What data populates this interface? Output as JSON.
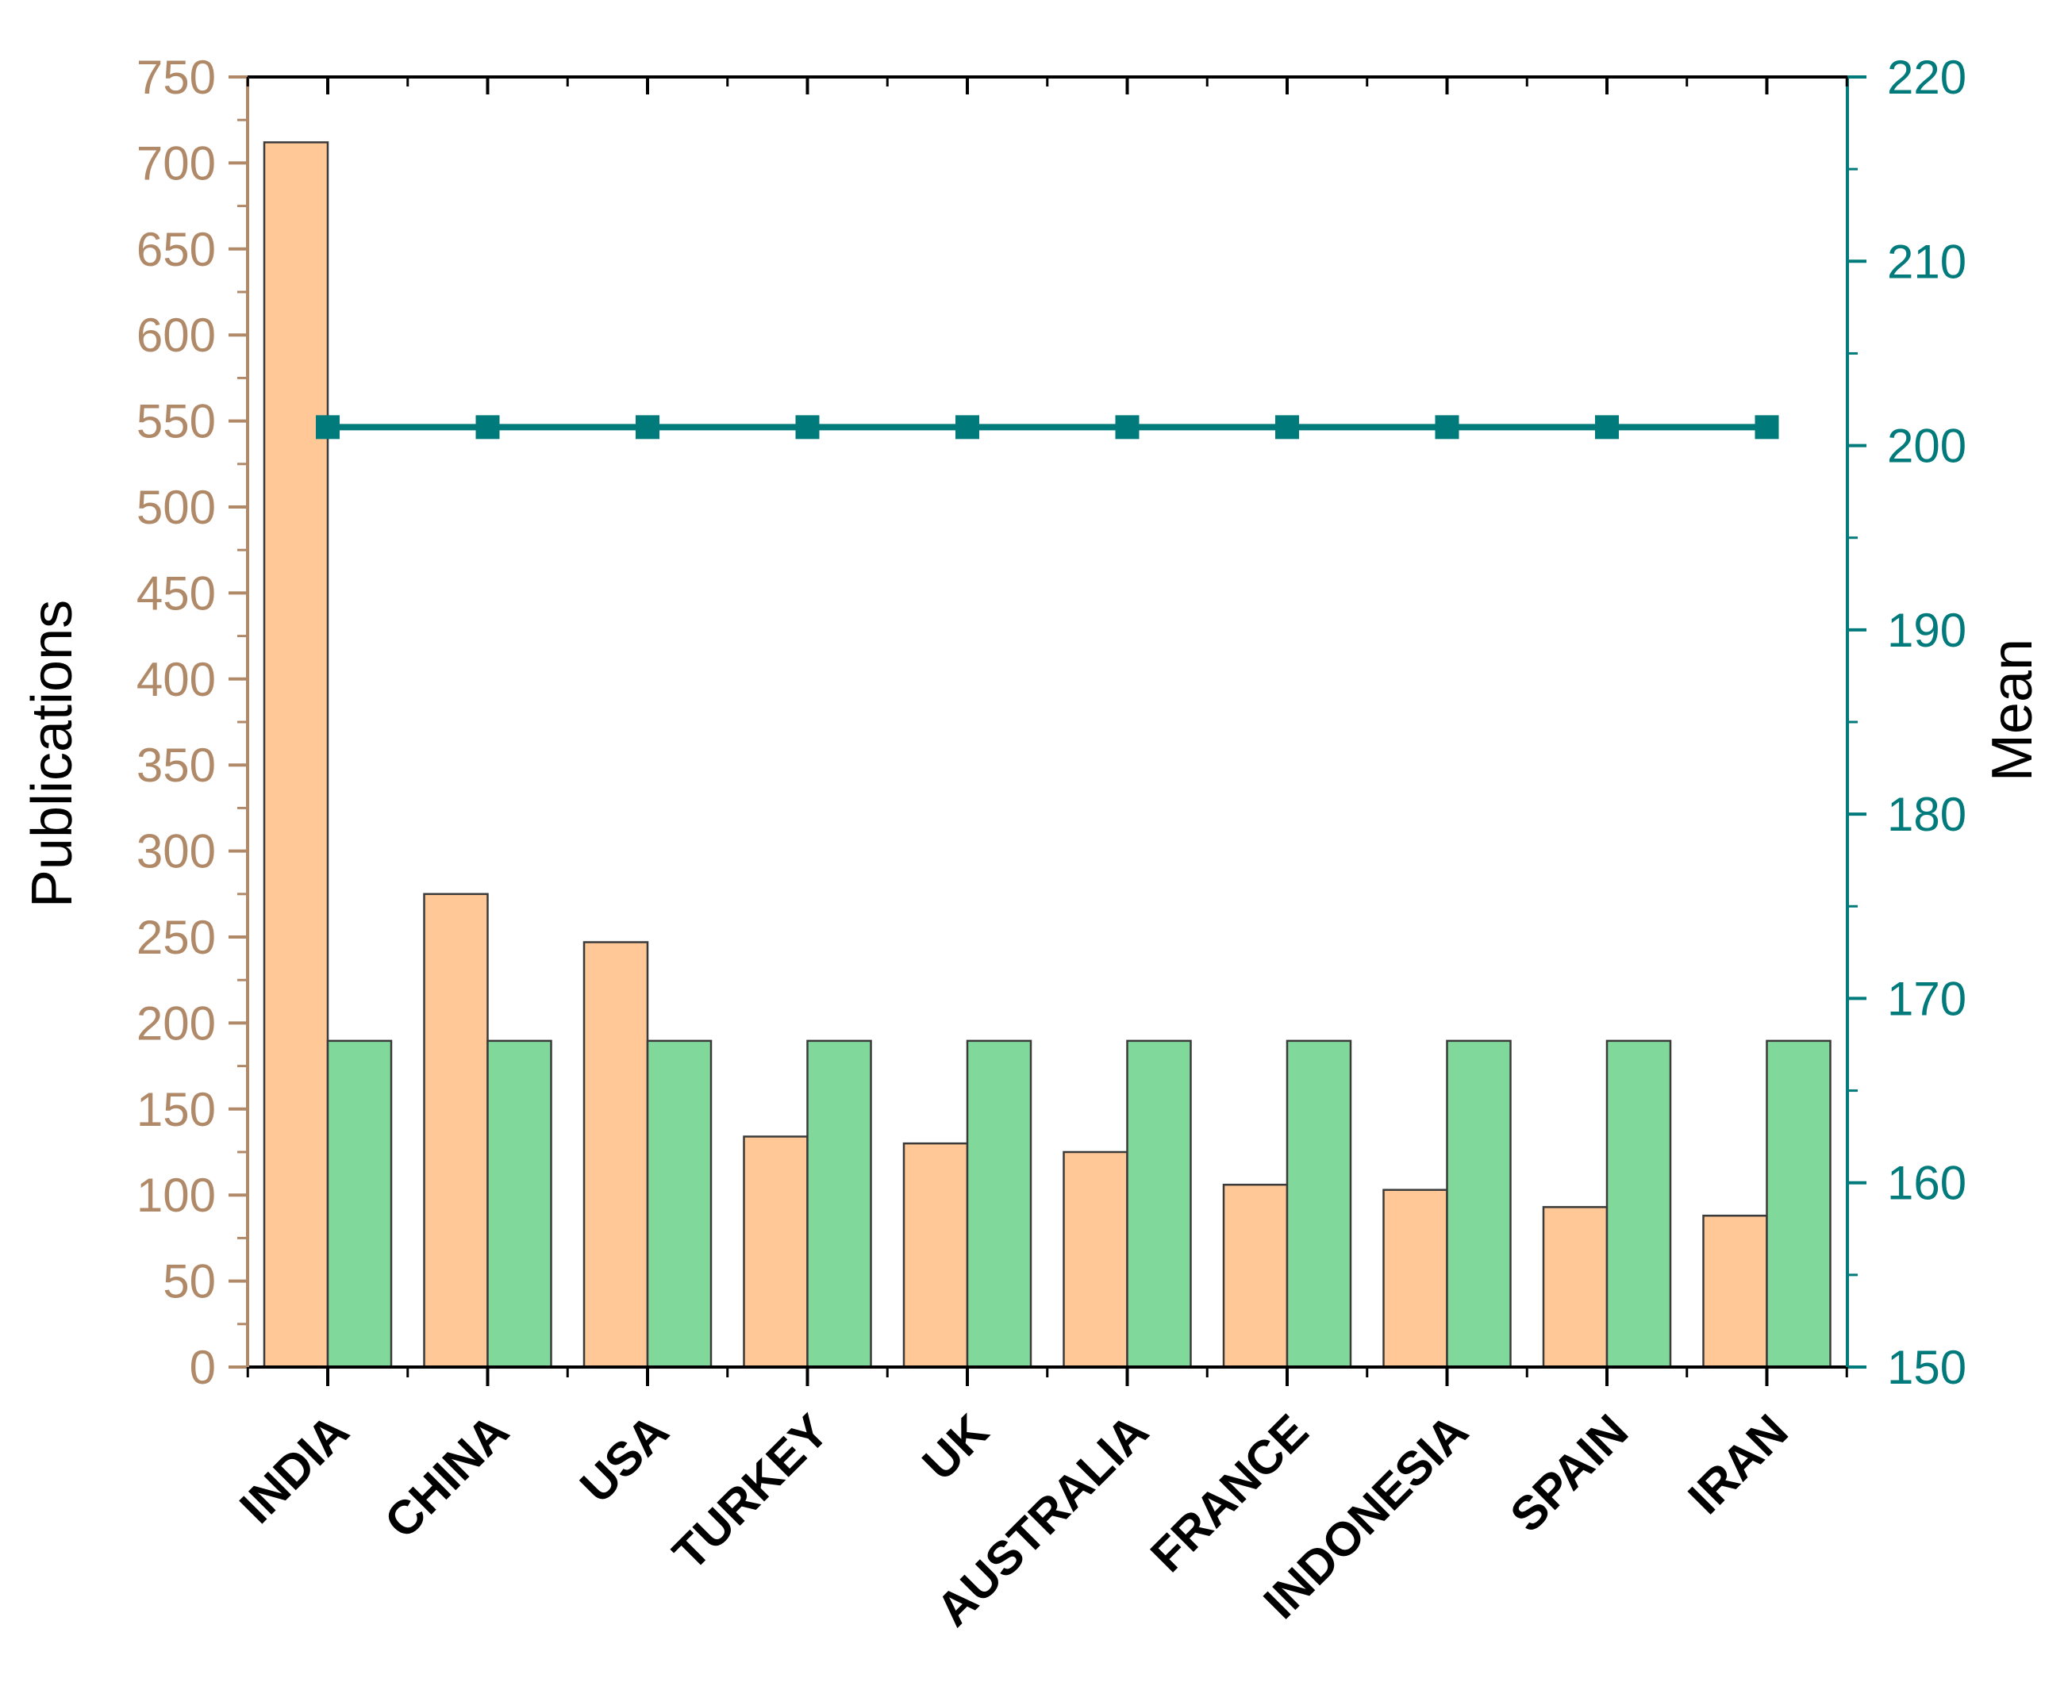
{
  "chart_data": {
    "type": "bar",
    "categories": [
      "INDIA",
      "CHINA",
      "USA",
      "TURKEY",
      "UK",
      "AUSTRALIA",
      "FRANCE",
      "INDONESIA",
      "SPAIN",
      "IRAN"
    ],
    "series": [
      {
        "values": [
          712,
          275,
          247,
          134,
          130,
          125,
          106,
          103,
          93,
          88
        ],
        "axis": "left",
        "kind": "bar",
        "color": "#FFC896"
      },
      {
        "values": [
          167.7,
          167.7,
          167.7,
          167.7,
          167.7,
          167.7,
          167.7,
          167.7,
          167.7,
          167.7
        ],
        "axis": "right",
        "kind": "bar",
        "color": "#80D99A"
      },
      {
        "values": [
          201,
          201,
          201,
          201,
          201,
          201,
          201,
          201,
          201,
          201
        ],
        "axis": "right",
        "kind": "line",
        "color": "#007A7A"
      }
    ],
    "ylabel": "Publications",
    "ylabel_right": "Mean",
    "ylim": [
      0,
      750
    ],
    "ylim_right": [
      150,
      220
    ],
    "yticks": [
      0,
      50,
      100,
      150,
      200,
      250,
      300,
      350,
      400,
      450,
      500,
      550,
      600,
      650,
      700,
      750
    ],
    "yticks_right": [
      150,
      160,
      170,
      180,
      190,
      200,
      210,
      220
    ],
    "left_axis_color": "#B08A68",
    "right_axis_color": "#007A7A",
    "grid": false,
    "legend": "none"
  }
}
